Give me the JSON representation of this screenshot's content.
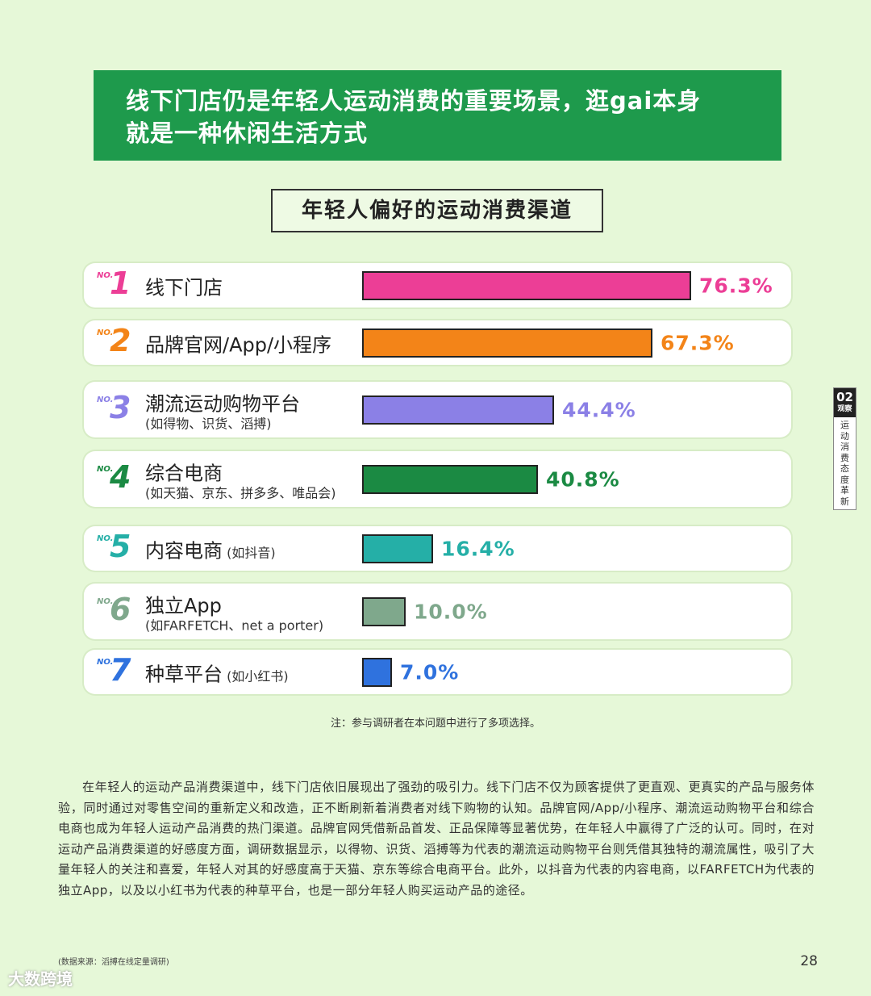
{
  "banner": {
    "line1": "线下门店仍是年轻人运动消费的重要场景，逛gai本身",
    "line2": "就是一种休闲生活方式"
  },
  "side_tab": {
    "number": "02",
    "title": "观察",
    "text": "运动消费态度革新"
  },
  "chart_data": {
    "type": "bar",
    "title": "年轻人偏好的运动消费渠道",
    "orientation": "horizontal",
    "xlim": [
      0,
      100
    ],
    "categories": [
      {
        "rank_prefix": "NO.",
        "rank": "1",
        "label": "线下门店",
        "sub": "",
        "inline_sub": "",
        "value": 76.3,
        "value_label": "76.3%",
        "color": "#ec3e96"
      },
      {
        "rank_prefix": "NO.",
        "rank": "2",
        "label": "品牌官网/App/小程序",
        "sub": "",
        "inline_sub": "",
        "value": 67.3,
        "value_label": "67.3%",
        "color": "#f38418"
      },
      {
        "rank_prefix": "NO.",
        "rank": "3",
        "label": "潮流运动购物平台",
        "sub": "(如得物、识货、滔搏)",
        "inline_sub": "",
        "value": 44.4,
        "value_label": "44.4%",
        "color": "#8b80e6"
      },
      {
        "rank_prefix": "NO.",
        "rank": "4",
        "label": "综合电商",
        "sub": "(如天猫、京东、拼多多、唯品会)",
        "inline_sub": "",
        "value": 40.8,
        "value_label": "40.8%",
        "color": "#1b8a43"
      },
      {
        "rank_prefix": "NO.",
        "rank": "5",
        "label": "内容电商",
        "sub": "",
        "inline_sub": "(如抖音)",
        "value": 16.4,
        "value_label": "16.4%",
        "color": "#25afa7"
      },
      {
        "rank_prefix": "NO.",
        "rank": "6",
        "label": "独立App",
        "sub": "(如FARFETCH、net a porter)",
        "inline_sub": "",
        "value": 10.0,
        "value_label": "10.0%",
        "color": "#7fa88c"
      },
      {
        "rank_prefix": "NO.",
        "rank": "7",
        "label": "种草平台",
        "sub": "",
        "inline_sub": "(如小红书)",
        "value": 7.0,
        "value_label": "7.0%",
        "color": "#2f72de"
      }
    ]
  },
  "note": "注：参与调研者在本问题中进行了多项选择。",
  "paragraph": "在年轻人的运动产品消费渠道中，线下门店依旧展现出了强劲的吸引力。线下门店不仅为顾客提供了更直观、更真实的产品与服务体验，同时通过对零售空间的重新定义和改造，正不断刷新着消费者对线下购物的认知。品牌官网/App/小程序、潮流运动购物平台和综合电商也成为年轻人运动产品消费的热门渠道。品牌官网凭借新品首发、正品保障等显著优势，在年轻人中赢得了广泛的认可。同时，在对运动产品消费渠道的好感度方面，调研数据显示，以得物、识货、滔搏等为代表的潮流运动购物平台则凭借其独特的潮流属性，吸引了大量年轻人的关注和喜爱，年轻人对其的好感度高于天猫、京东等综合电商平台。此外，以抖音为代表的内容电商，以FARFETCH为代表的独立App，以及以小红书为代表的种草平台，也是一部分年轻人购买运动产品的途径。",
  "source": "(数据来源：滔搏在线定量调研)",
  "page_number": "28",
  "watermark": "大数跨境"
}
